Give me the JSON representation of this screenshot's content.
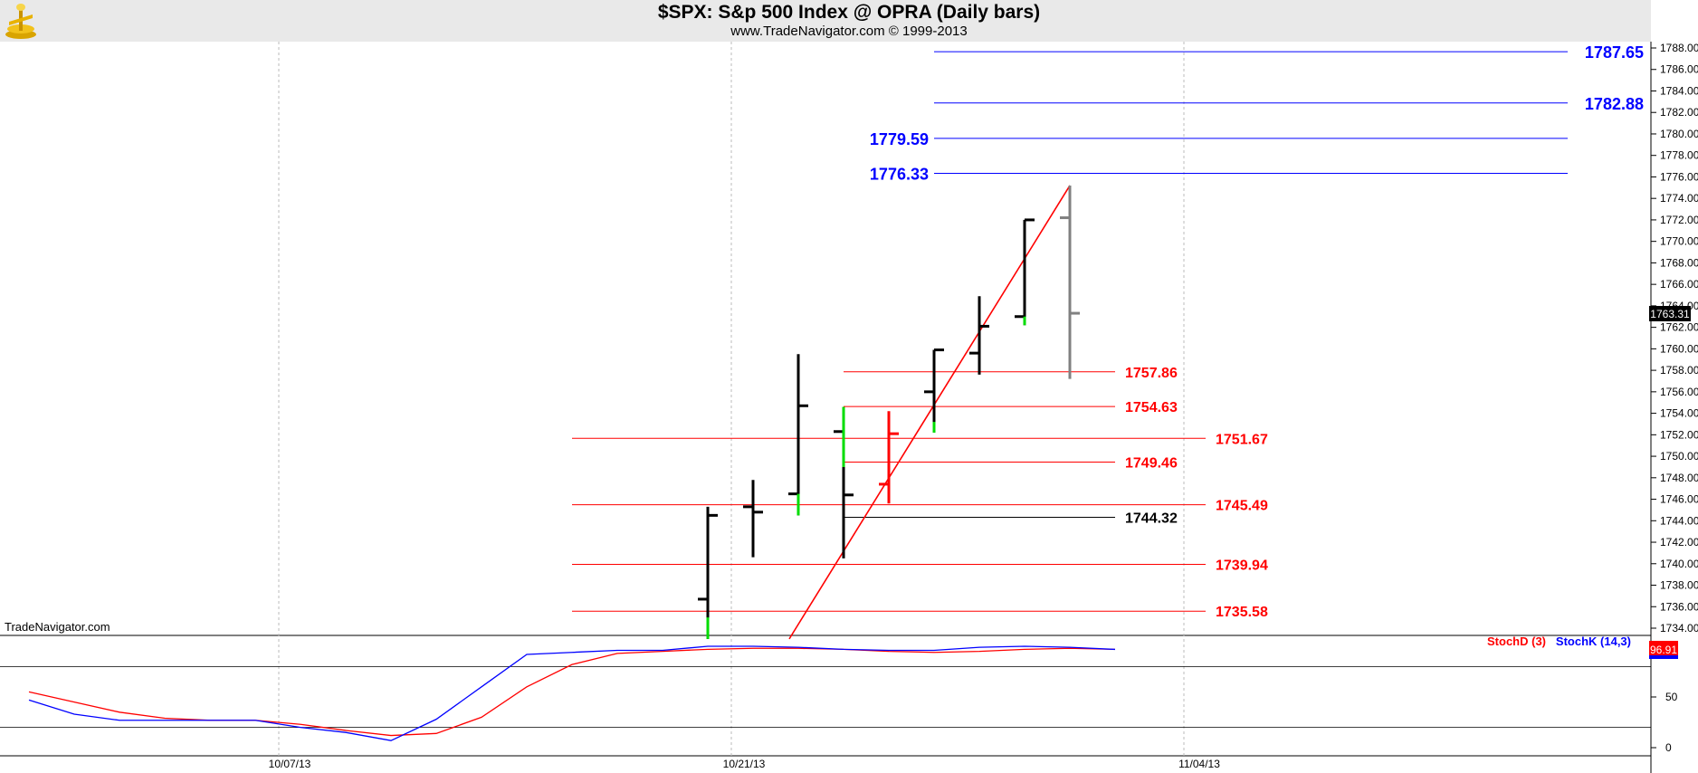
{
  "header": {
    "title": "$SPX:  S&p 500 Index @ OPRA  (Daily bars)",
    "subtitle": "www.TradeNavigator.com © 1999-2013"
  },
  "watermark": "TradeNavigator.com",
  "colors": {
    "bar_up": "#000000",
    "bar_down": "#ff0000",
    "bar_current": "#808080",
    "close_marker_green": "#00dd00",
    "upper_levels": "#0000ff",
    "lower_levels": "#ff0000",
    "stoch_d": "#ff0000",
    "stoch_k": "#0000ff"
  },
  "chart_data": [
    {
      "type": "ohlc",
      "symbol": "$SPX",
      "ylim": [
        1733,
        1789
      ],
      "y_ticks": [
        1734,
        1736,
        1738,
        1740,
        1742,
        1744,
        1746,
        1748,
        1750,
        1752,
        1754,
        1756,
        1758,
        1760,
        1762,
        1764,
        1766,
        1768,
        1770,
        1772,
        1774,
        1776,
        1778,
        1780,
        1782,
        1784,
        1786,
        1788
      ],
      "x_tick_labels": [
        "10/07/13",
        "10/21/13",
        "11/04/13"
      ],
      "last_price_label": "1763.31",
      "bars": [
        {
          "open": 1736.7,
          "high": 1745.3,
          "low": 1733.0,
          "close": 1744.5,
          "color": "up"
        },
        {
          "open": 1745.3,
          "high": 1747.8,
          "low": 1740.6,
          "close": 1744.8,
          "color": "up"
        },
        {
          "open": 1746.5,
          "high": 1759.5,
          "low": 1744.5,
          "close": 1754.7,
          "color": "up"
        },
        {
          "open": 1752.3,
          "high": 1754.6,
          "low": 1740.5,
          "close": 1746.4,
          "color": "up"
        },
        {
          "open": 1747.4,
          "high": 1754.2,
          "low": 1745.6,
          "close": 1752.1,
          "color": "down"
        },
        {
          "open": 1756.0,
          "high": 1759.9,
          "low": 1752.2,
          "close": 1759.9,
          "color": "up"
        },
        {
          "open": 1759.6,
          "high": 1764.9,
          "low": 1757.6,
          "close": 1762.1,
          "color": "up"
        },
        {
          "open": 1763.0,
          "high": 1772.0,
          "low": 1762.2,
          "close": 1772.0,
          "color": "up"
        },
        {
          "open": 1772.2,
          "high": 1775.2,
          "low": 1757.2,
          "close": 1763.31,
          "color": "current"
        }
      ],
      "trendline": {
        "from": {
          "bar": 1.8,
          "price": 1733.0
        },
        "to": {
          "bar": 8,
          "price": 1775.2
        }
      },
      "upper_levels": [
        {
          "price": 1787.65,
          "label": "1787.65"
        },
        {
          "price": 1782.88,
          "label": "1782.88"
        },
        {
          "price": 1779.59,
          "label": "1779.59"
        },
        {
          "price": 1776.33,
          "label": "1776.33"
        }
      ],
      "lower_levels": [
        {
          "price": 1757.86,
          "label": "1757.86",
          "color": "red"
        },
        {
          "price": 1754.63,
          "label": "1754.63",
          "color": "red"
        },
        {
          "price": 1751.67,
          "label": "1751.67",
          "color": "red"
        },
        {
          "price": 1749.46,
          "label": "1749.46",
          "color": "red"
        },
        {
          "price": 1745.49,
          "label": "1745.49",
          "color": "red"
        },
        {
          "price": 1744.32,
          "label": "1744.32",
          "color": "black"
        },
        {
          "price": 1739.94,
          "label": "1739.94",
          "color": "red"
        },
        {
          "price": 1735.58,
          "label": "1735.58",
          "color": "red"
        }
      ]
    },
    {
      "type": "line",
      "indicator": "Stochastic",
      "ylim": [
        -5,
        110
      ],
      "y_ticks": [
        0,
        50
      ],
      "hlines": [
        20,
        80
      ],
      "last_value_label": "96.91",
      "series": [
        {
          "name": "StochD (3)",
          "values": [
            55,
            45,
            35,
            29,
            27,
            27,
            23,
            17,
            12,
            14,
            30,
            60,
            82,
            93,
            95,
            97,
            98,
            98,
            97,
            95,
            94,
            95,
            97,
            98,
            97
          ]
        },
        {
          "name": "StochK (14,3)",
          "values": [
            47,
            33,
            27,
            27,
            27,
            27,
            20,
            15,
            7,
            28,
            60,
            92,
            94,
            96,
            96,
            100,
            100,
            99,
            97,
            96,
            96,
            99,
            100,
            99,
            96.91
          ]
        }
      ]
    }
  ]
}
